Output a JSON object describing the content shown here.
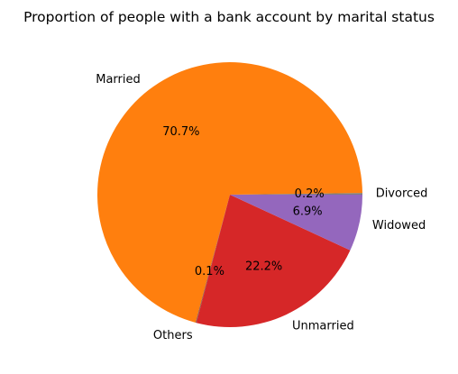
{
  "chart_data": {
    "type": "pie",
    "title": "Proportion of people with a bank account by marital status",
    "slices": [
      {
        "label": "Divorced",
        "value": 0.2,
        "pct_label": "0.2%",
        "color": "#7f7f7f"
      },
      {
        "label": "Married",
        "value": 70.7,
        "pct_label": "70.7%",
        "color": "#ff7f0e"
      },
      {
        "label": "Others",
        "value": 0.1,
        "pct_label": "0.1%",
        "color": "#8c564b"
      },
      {
        "label": "Unmarried",
        "value": 22.2,
        "pct_label": "22.2%",
        "color": "#d62728"
      },
      {
        "label": "Widowed",
        "value": 6.9,
        "pct_label": "6.9%",
        "color": "#9467bd"
      }
    ],
    "start_angle": 0,
    "direction": "counterclockwise",
    "legend": "none"
  }
}
